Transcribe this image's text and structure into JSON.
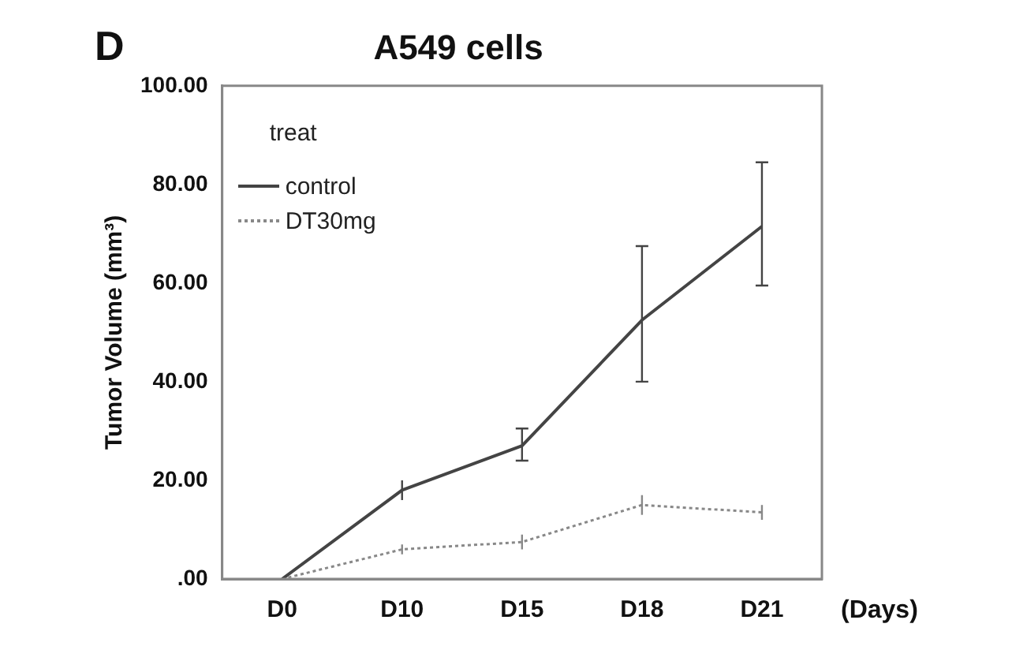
{
  "chart_data": {
    "type": "line",
    "title": "A549 cells",
    "xlabel": "(Days)",
    "ylabel": "Tumor Volume (mm³)",
    "legend_title": "treat",
    "annotations": [
      "D"
    ],
    "categories": [
      "D0",
      "D10",
      "D15",
      "D18",
      "D21"
    ],
    "series": [
      {
        "name": "control",
        "color": "#444444",
        "line_style": "solid",
        "values": [
          0,
          18,
          27,
          52.5,
          71.5
        ],
        "errors": [
          null,
          [
            16,
            20
          ],
          [
            24,
            30.5
          ],
          [
            40,
            67.5
          ],
          [
            59.5,
            84.5
          ]
        ]
      },
      {
        "name": "DT30mg",
        "color": "#888888",
        "line_style": "dotted",
        "values": [
          0,
          6,
          7.5,
          15,
          13.5
        ],
        "errors": [
          null,
          [
            5,
            7
          ],
          [
            6,
            9
          ],
          [
            13,
            17
          ],
          [
            12,
            15
          ]
        ]
      }
    ],
    "ylim": [
      0,
      100
    ],
    "yticks": [
      {
        "value": 0,
        "label": ".00"
      },
      {
        "value": 20,
        "label": "20.00"
      },
      {
        "value": 40,
        "label": "40.00"
      },
      {
        "value": 60,
        "label": "60.00"
      },
      {
        "value": 80,
        "label": "80.00"
      },
      {
        "value": 100,
        "label": "100.00"
      }
    ],
    "grid": false,
    "legend": "top left",
    "marker": "none"
  }
}
